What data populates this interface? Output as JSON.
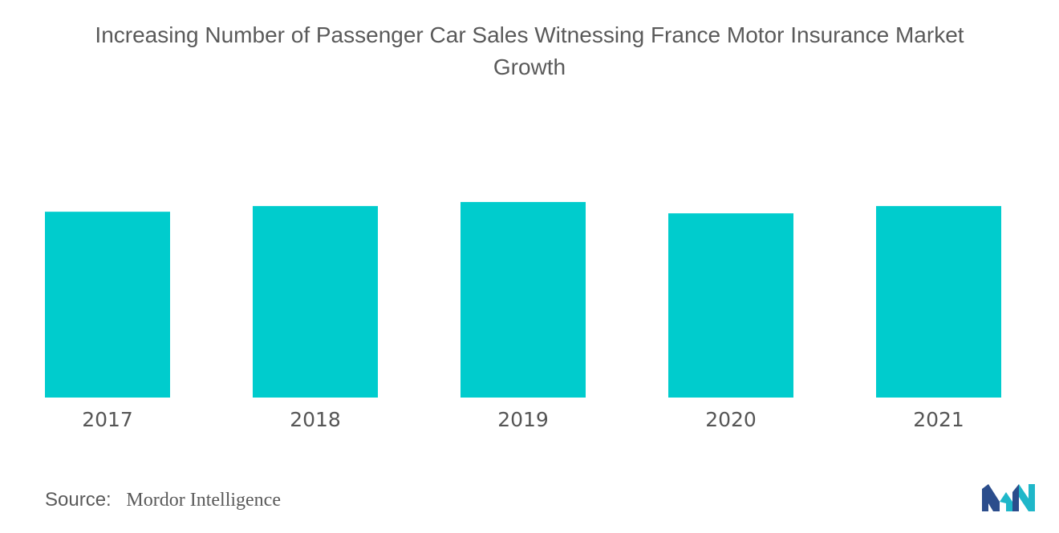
{
  "chart_data": {
    "type": "bar",
    "title": "Increasing Number of Passenger Car Sales Witnessing France Motor Insurance Market Growth",
    "title_lines": [
      "Increasing Number of Passenger Car Sales Witnessing France Motor Insurance Market",
      "Growth"
    ],
    "categories": [
      "2017",
      "2018",
      "2019",
      "2020",
      "2021"
    ],
    "values": [
      230,
      237,
      242,
      228,
      237
    ],
    "ylim": [
      0,
      250
    ],
    "xlabel": "",
    "ylabel": "",
    "grid": false,
    "legend": "none",
    "bar_color": "#00cccd"
  },
  "source": {
    "label": "Source:",
    "value": "Mordor Intelligence"
  },
  "logo": {
    "icon": "mordor-intelligence-logo-icon",
    "colors": [
      "#2b4d8c",
      "#1fb7c9"
    ]
  }
}
